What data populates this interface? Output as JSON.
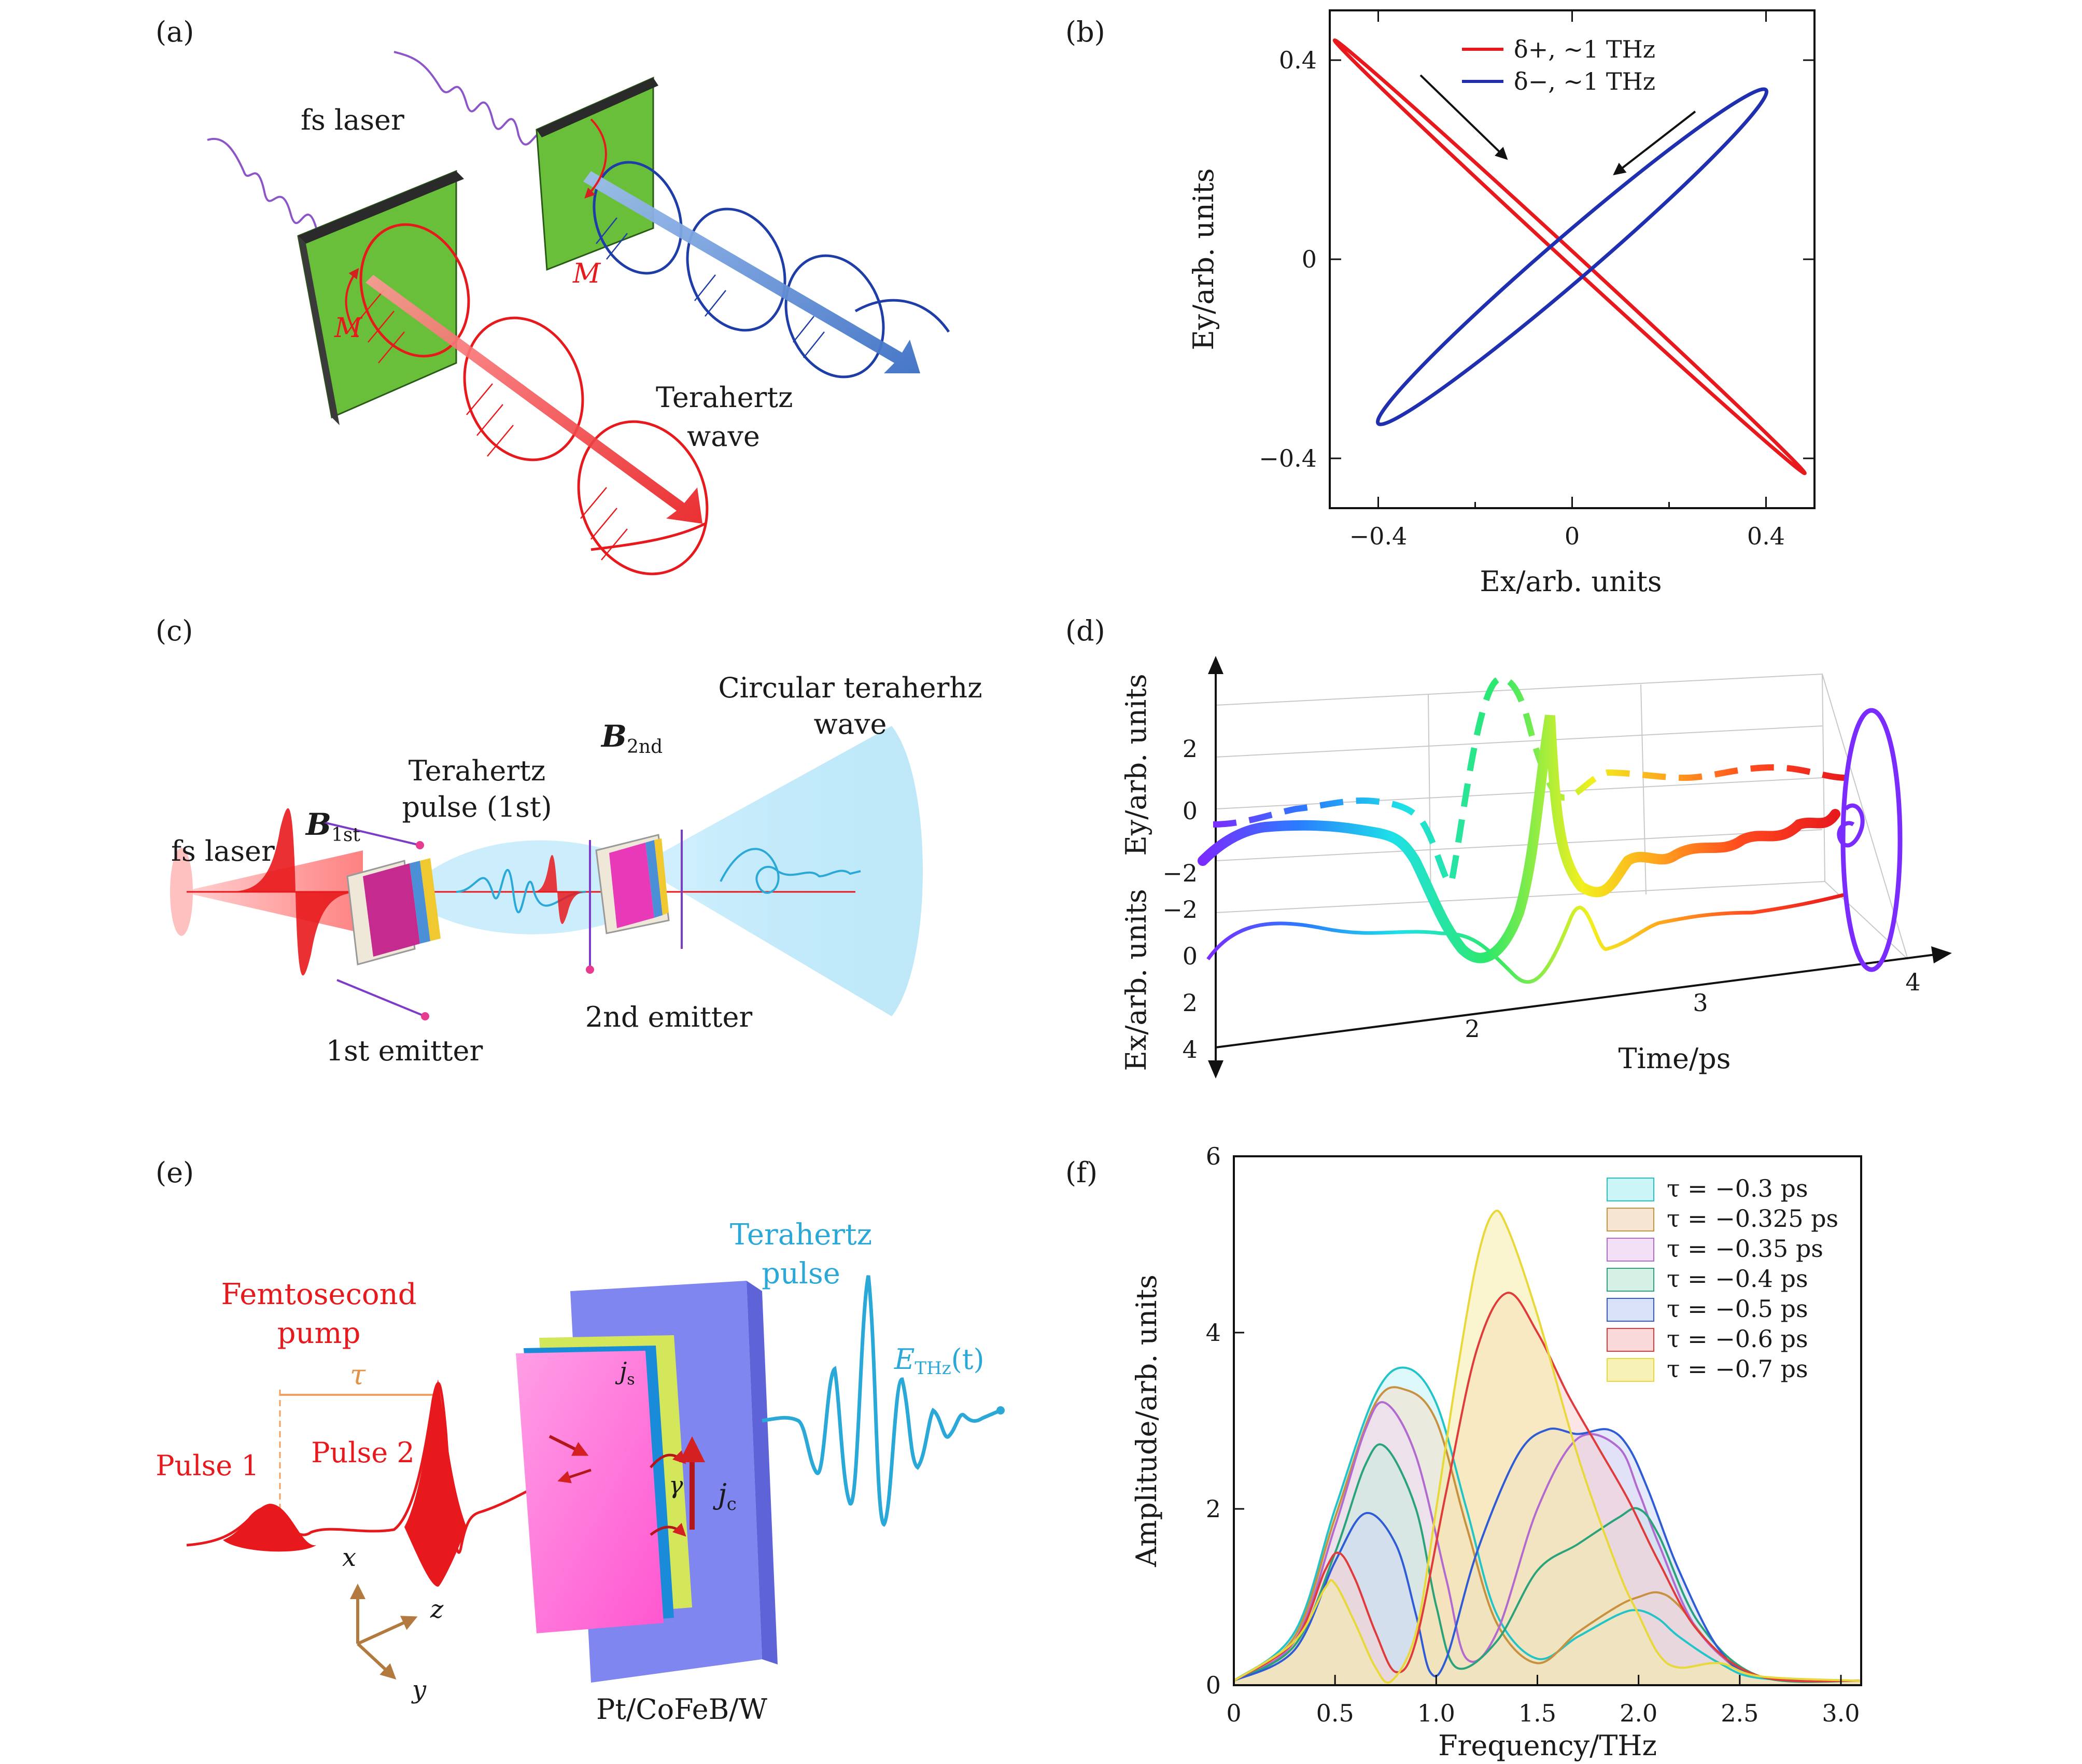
{
  "panels": {
    "a": {
      "letter": "(a)",
      "fs_laser": "fs laser",
      "m_label": "M",
      "terahertz_line1": "Terahertz",
      "terahertz_line2": "wave"
    },
    "c": {
      "letter": "(c)",
      "fs_laser": "fs laser",
      "b1": "B",
      "b1_sub": "1st",
      "b2": "B",
      "b2_sub": "2nd",
      "pulse_line1": "Terahertz",
      "pulse_line2": "pulse (1st)",
      "circular_line1": "Circular teraherhz",
      "circular_line2": "wave",
      "emitter1": "1st emitter",
      "emitter2": "2nd emitter"
    },
    "d": {
      "letter": "(d)",
      "ylabel": "Ey/arb. units",
      "xlabel_left": "Ex/arb. units",
      "time_label": "Time/ps",
      "ey_ticks": [
        "2",
        "0",
        "−2"
      ],
      "ex_ticks": [
        "−2",
        "0",
        "2",
        "4"
      ],
      "time_ticks": [
        "2",
        "3",
        "4"
      ]
    },
    "e": {
      "letter": "(e)",
      "pump_line1": "Femtosecond",
      "pump_line2": "pump",
      "tau": "τ",
      "pulse1": "Pulse 1",
      "pulse2": "Pulse 2",
      "thz_line1": "Terahertz",
      "thz_line2": "pulse",
      "ethz": "E",
      "ethz_sub": "THz",
      "ethz_arg": "(t)",
      "js": "j",
      "js_sub": "s",
      "jc": "j",
      "jc_sub": "c",
      "gamma": "γ",
      "axis_x": "x",
      "axis_y": "y",
      "axis_z": "z",
      "material": "Pt/CoFeB/W"
    }
  },
  "chart_data": [
    {
      "panel": "b",
      "letter": "(b)",
      "type": "line",
      "xlabel": "Ex/arb. units",
      "ylabel": "Ey/arb. units",
      "xlim": [
        -0.5,
        0.5
      ],
      "ylim": [
        -0.5,
        0.5
      ],
      "xticks": [
        -0.4,
        0,
        0.4
      ],
      "yticks": [
        -0.4,
        0,
        0.4
      ],
      "xtick_labels": [
        "−0.4",
        "0",
        "0.4"
      ],
      "ytick_labels": [
        "−0.4",
        "0",
        "0.4"
      ],
      "legend_position": "top-center",
      "series": [
        {
          "name": "δ+, ~1 THz",
          "color": "#e8191c",
          "shape": "ellipse",
          "end_a": [
            -0.49,
            0.44
          ],
          "end_b": [
            0.48,
            -0.43
          ],
          "minor_width": 0.012
        },
        {
          "name": "δ−, ~1 THz",
          "color": "#1f2fb0",
          "shape": "ellipse",
          "end_a": [
            -0.4,
            -0.33
          ],
          "end_b": [
            0.4,
            0.34
          ],
          "minor_width": 0.045
        }
      ]
    },
    {
      "panel": "f",
      "letter": "(f)",
      "type": "area",
      "xlabel": "Frequency/THz",
      "ylabel": "Amplitude/arb. units",
      "xlim": [
        0,
        3.1
      ],
      "ylim": [
        0,
        6
      ],
      "xticks": [
        0,
        0.5,
        1.0,
        1.5,
        2.0,
        2.5,
        3.0
      ],
      "xtick_labels": [
        "0",
        "0.5",
        "1.0",
        "1.5",
        "2.0",
        "2.5",
        "3.0"
      ],
      "yticks": [
        0,
        2,
        4,
        6
      ],
      "ytick_labels": [
        "0",
        "2",
        "4",
        "6"
      ],
      "legend_position": "top-right",
      "series": [
        {
          "name": "τ = −0.3 ps",
          "color": "#22c4c8",
          "fill": "#bff3f5",
          "x": [
            0,
            0.3,
            0.5,
            0.7,
            0.85,
            1.0,
            1.15,
            1.3,
            1.5,
            1.7,
            1.9,
            2.0,
            2.1,
            2.2,
            2.4,
            2.6,
            3.1
          ],
          "y": [
            0.05,
            0.6,
            2.0,
            3.3,
            3.6,
            3.2,
            2.0,
            0.8,
            0.3,
            0.55,
            0.8,
            0.85,
            0.75,
            0.55,
            0.25,
            0.08,
            0.05
          ]
        },
        {
          "name": "τ = −0.325 ps",
          "color": "#c7913f",
          "fill": "#f5dfc8",
          "x": [
            0,
            0.3,
            0.5,
            0.7,
            0.85,
            1.0,
            1.15,
            1.3,
            1.5,
            1.7,
            1.9,
            2.0,
            2.1,
            2.2,
            2.4,
            2.6,
            3.1
          ],
          "y": [
            0.05,
            0.55,
            1.9,
            3.2,
            3.35,
            3.0,
            1.8,
            0.7,
            0.25,
            0.6,
            0.9,
            1.0,
            1.05,
            0.9,
            0.35,
            0.1,
            0.05
          ]
        },
        {
          "name": "τ = −0.35 ps",
          "color": "#b36ad0",
          "fill": "#efd8f5",
          "x": [
            0,
            0.3,
            0.5,
            0.65,
            0.75,
            0.9,
            1.05,
            1.15,
            1.3,
            1.5,
            1.7,
            1.9,
            2.0,
            2.1,
            2.3,
            2.6,
            3.1
          ],
          "y": [
            0.05,
            0.5,
            1.8,
            2.9,
            3.2,
            2.6,
            1.2,
            0.3,
            0.6,
            2.0,
            2.8,
            2.7,
            2.2,
            1.6,
            0.6,
            0.1,
            0.05
          ]
        },
        {
          "name": "τ = −0.4 ps",
          "color": "#2aa37a",
          "fill": "#c9ecdf",
          "x": [
            0,
            0.3,
            0.5,
            0.65,
            0.75,
            0.9,
            1.0,
            1.1,
            1.3,
            1.5,
            1.7,
            1.9,
            2.0,
            2.1,
            2.3,
            2.6,
            3.1
          ],
          "y": [
            0.05,
            0.45,
            1.5,
            2.5,
            2.7,
            2.0,
            0.9,
            0.2,
            0.5,
            1.3,
            1.6,
            1.9,
            2.0,
            1.7,
            0.7,
            0.1,
            0.05
          ]
        },
        {
          "name": "τ = −0.5 ps",
          "color": "#2f5cd6",
          "fill": "#cfd9f6",
          "x": [
            0,
            0.3,
            0.5,
            0.65,
            0.8,
            0.9,
            0.97,
            1.05,
            1.2,
            1.4,
            1.55,
            1.7,
            1.85,
            1.95,
            2.05,
            2.2,
            2.4,
            2.6,
            3.1
          ],
          "y": [
            0.05,
            0.4,
            1.4,
            1.95,
            1.6,
            0.8,
            0.15,
            0.3,
            1.5,
            2.6,
            2.9,
            2.85,
            2.9,
            2.7,
            2.2,
            1.3,
            0.4,
            0.1,
            0.05
          ]
        },
        {
          "name": "τ = −0.6 ps",
          "color": "#e03a3a",
          "fill": "#f8d0d0",
          "x": [
            0,
            0.3,
            0.45,
            0.52,
            0.6,
            0.7,
            0.8,
            0.9,
            1.05,
            1.2,
            1.35,
            1.5,
            1.65,
            1.8,
            1.95,
            2.1,
            2.3,
            2.6,
            3.1
          ],
          "y": [
            0.05,
            0.5,
            1.3,
            1.5,
            1.2,
            0.6,
            0.15,
            0.5,
            2.2,
            3.8,
            4.45,
            4.0,
            3.3,
            2.7,
            2.1,
            1.4,
            0.6,
            0.1,
            0.05
          ]
        },
        {
          "name": "τ = −0.7 ps",
          "color": "#e8d83a",
          "fill": "#f5eda6",
          "x": [
            0,
            0.3,
            0.45,
            0.5,
            0.6,
            0.7,
            0.78,
            0.9,
            1.0,
            1.1,
            1.2,
            1.28,
            1.35,
            1.5,
            1.7,
            1.9,
            2.0,
            2.1,
            2.2,
            2.4,
            2.6,
            3.1
          ],
          "y": [
            0.05,
            0.5,
            1.1,
            1.15,
            0.7,
            0.2,
            0.05,
            0.6,
            2.0,
            3.5,
            4.8,
            5.35,
            5.2,
            4.2,
            2.6,
            1.3,
            0.8,
            0.35,
            0.2,
            0.25,
            0.1,
            0.05
          ]
        }
      ]
    }
  ]
}
